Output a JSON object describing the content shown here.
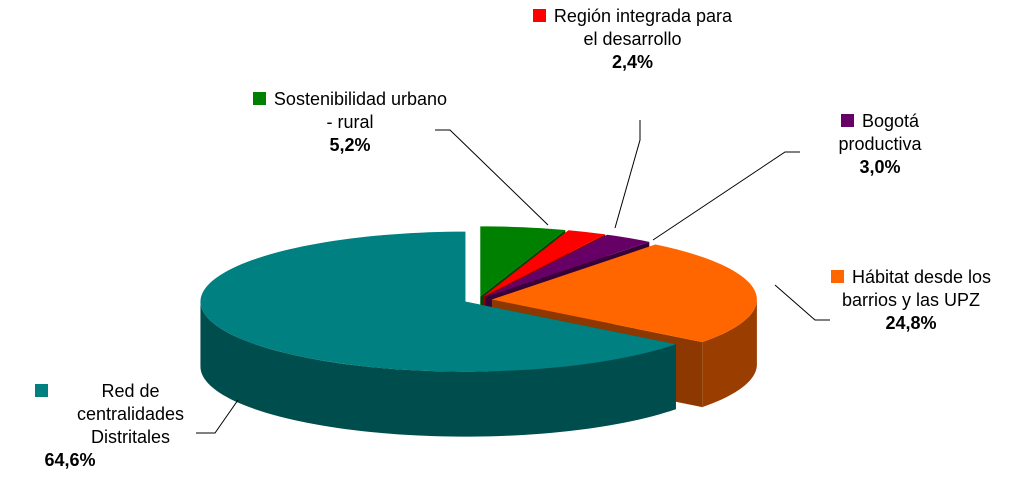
{
  "chart_data": {
    "type": "pie3d",
    "categories": [
      "Red de centralidades Distritales",
      "Hábitat desde los barrios y las UPZ",
      "Bogotá productiva",
      "Región integrada para el desarrollo",
      "Sostenibilidad urbano - rural"
    ],
    "values": [
      64.6,
      24.8,
      3.0,
      2.4,
      5.2
    ],
    "value_labels": [
      "64,6%",
      "24,8%",
      "3,0%",
      "2,4%",
      "5,2%"
    ],
    "colors": [
      "#008080",
      "#ff6600",
      "#660066",
      "#ff0000",
      "#008000"
    ]
  }
}
